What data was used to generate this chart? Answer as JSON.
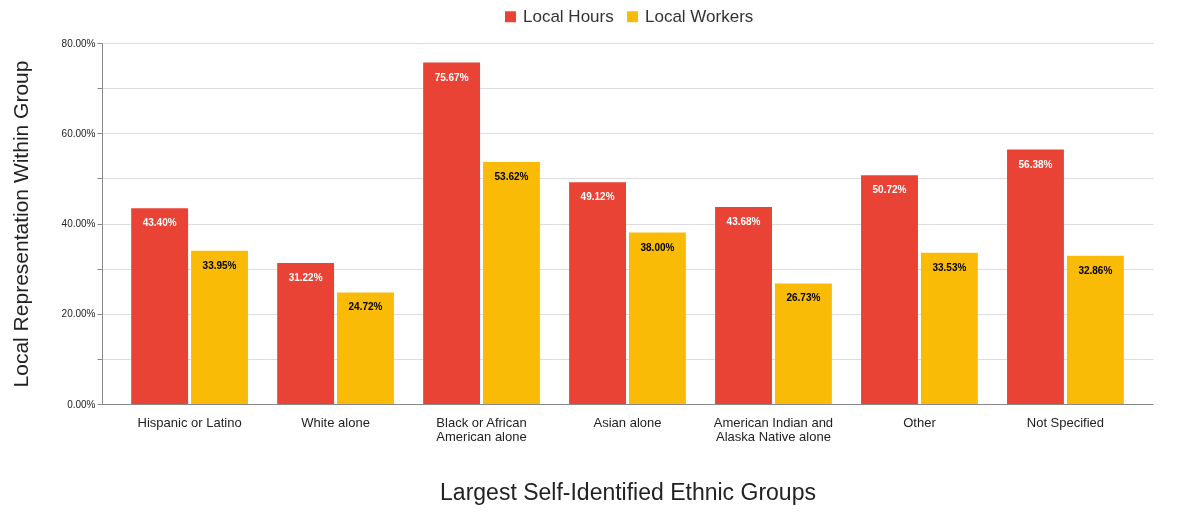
{
  "chart_data": {
    "type": "bar",
    "xlabel": "Largest Self-Identified Ethnic Groups",
    "ylabel": "Local Representation  Within Group",
    "categories": [
      "Hispanic or Latino",
      "White alone",
      "Black or African American alone",
      "Asian alone",
      "American Indian and Alaska Native alone",
      "Other",
      "Not Specified"
    ],
    "series": [
      {
        "name": "Local Hours",
        "color": "#e94335",
        "values": [
          43.4,
          31.22,
          75.67,
          49.12,
          43.68,
          50.72,
          56.38
        ],
        "value_labels": [
          "43.40%",
          "31.22%",
          "75.67%",
          "49.12%",
          "43.68%",
          "50.72%",
          "56.38%"
        ]
      },
      {
        "name": "Local Workers",
        "color": "#f9bb05",
        "values": [
          33.95,
          24.72,
          53.62,
          38.0,
          26.73,
          33.53,
          32.86
        ],
        "value_labels": [
          "33.95%",
          "24.72%",
          "53.62%",
          "38.00%",
          "26.73%",
          "33.53%",
          "32.86%"
        ]
      }
    ],
    "ylim": [
      0,
      80
    ],
    "yticks": [
      {
        "value": 0,
        "label": "0.00%"
      },
      {
        "value": 10,
        "label": null
      },
      {
        "value": 20,
        "label": "20.00%"
      },
      {
        "value": 30,
        "label": null
      },
      {
        "value": 40,
        "label": "40.00%"
      },
      {
        "value": 50,
        "label": null
      },
      {
        "value": 60,
        "label": "60.00%"
      },
      {
        "value": 70,
        "label": null
      },
      {
        "value": 80,
        "label": "80.00%"
      }
    ],
    "grid": true,
    "legend": "top"
  }
}
